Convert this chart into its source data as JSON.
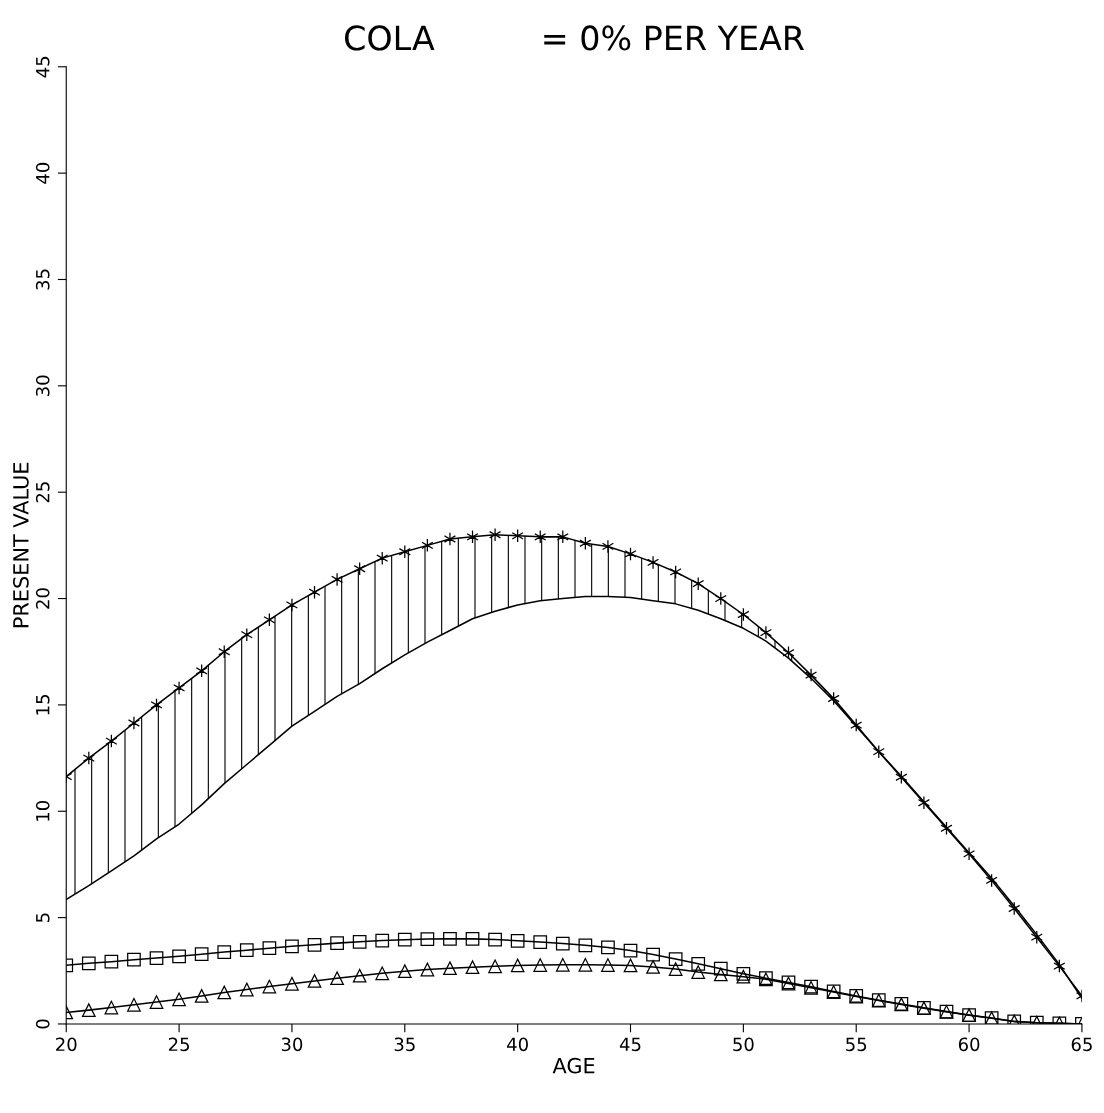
{
  "chart_data": {
    "type": "line",
    "title": "COLA          = 0% PER YEAR",
    "xlabel": "AGE",
    "ylabel": "PRESENT VALUE",
    "x": [
      20,
      21,
      22,
      23,
      24,
      25,
      26,
      27,
      28,
      29,
      30,
      31,
      32,
      33,
      34,
      35,
      36,
      37,
      38,
      39,
      40,
      41,
      42,
      43,
      44,
      45,
      46,
      47,
      48,
      49,
      50,
      51,
      52,
      53,
      54,
      55,
      56,
      57,
      58,
      59,
      60,
      61,
      62,
      63,
      64,
      65
    ],
    "series": [
      {
        "color": "#000000",
        "marker": "cross",
        "values": [
          11.63,
          12.5,
          13.3,
          14.15,
          15.0,
          15.8,
          16.6,
          17.5,
          18.3,
          19.0,
          19.7,
          20.3,
          20.9,
          21.4,
          21.9,
          22.2,
          22.5,
          22.8,
          22.9,
          23.0,
          22.95,
          22.9,
          22.9,
          22.6,
          22.45,
          22.1,
          21.7,
          21.25,
          20.7,
          20.0,
          19.25,
          18.4,
          17.45,
          16.4,
          15.3,
          14.05,
          12.8,
          11.6,
          10.4,
          9.2,
          8.0,
          6.75,
          5.43,
          4.08,
          2.72,
          1.32
        ]
      },
      {
        "color": "#000000",
        "marker": "none",
        "values": [
          5.85,
          6.5,
          7.2,
          7.9,
          8.7,
          9.4,
          10.3,
          11.3,
          12.2,
          13.1,
          14.0,
          14.7,
          15.4,
          16.0,
          16.7,
          17.35,
          17.95,
          18.5,
          19.05,
          19.4,
          19.7,
          19.9,
          20.0,
          20.1,
          20.1,
          20.05,
          19.9,
          19.75,
          19.45,
          19.05,
          18.6,
          18.0,
          17.2,
          16.25,
          15.2,
          14.0,
          12.8,
          11.65,
          10.45,
          9.25,
          8.05,
          6.85,
          5.55,
          4.2,
          2.8,
          1.2
        ]
      },
      {
        "color": "#000000",
        "marker": "square",
        "values": [
          2.76,
          2.85,
          2.93,
          3.02,
          3.1,
          3.18,
          3.28,
          3.38,
          3.47,
          3.56,
          3.65,
          3.72,
          3.8,
          3.86,
          3.92,
          3.96,
          3.99,
          4.0,
          4.0,
          3.97,
          3.91,
          3.85,
          3.78,
          3.7,
          3.6,
          3.45,
          3.26,
          3.05,
          2.83,
          2.6,
          2.36,
          2.15,
          1.95,
          1.75,
          1.53,
          1.32,
          1.12,
          0.94,
          0.76,
          0.58,
          0.42,
          0.28,
          0.12,
          0.06,
          0.03,
          0.0
        ]
      },
      {
        "color": "#000000",
        "marker": "triangle",
        "values": [
          0.54,
          0.65,
          0.77,
          0.9,
          1.03,
          1.16,
          1.32,
          1.48,
          1.62,
          1.76,
          1.89,
          2.02,
          2.15,
          2.27,
          2.38,
          2.48,
          2.56,
          2.62,
          2.67,
          2.71,
          2.75,
          2.77,
          2.78,
          2.78,
          2.77,
          2.75,
          2.68,
          2.58,
          2.44,
          2.33,
          2.22,
          2.1,
          1.9,
          1.7,
          1.5,
          1.29,
          1.1,
          0.92,
          0.74,
          0.57,
          0.41,
          0.27,
          0.12,
          0.06,
          0.03,
          0.0
        ]
      }
    ],
    "xlim": [
      20,
      65
    ],
    "xticks": [
      20,
      25,
      30,
      35,
      40,
      45,
      50,
      55,
      60,
      65
    ],
    "ylim": [
      0,
      45
    ],
    "yticks": [
      0,
      5,
      10,
      15,
      20,
      25,
      30,
      35,
      40,
      45
    ],
    "grid": false,
    "legend": false,
    "line_style": "solid"
  }
}
